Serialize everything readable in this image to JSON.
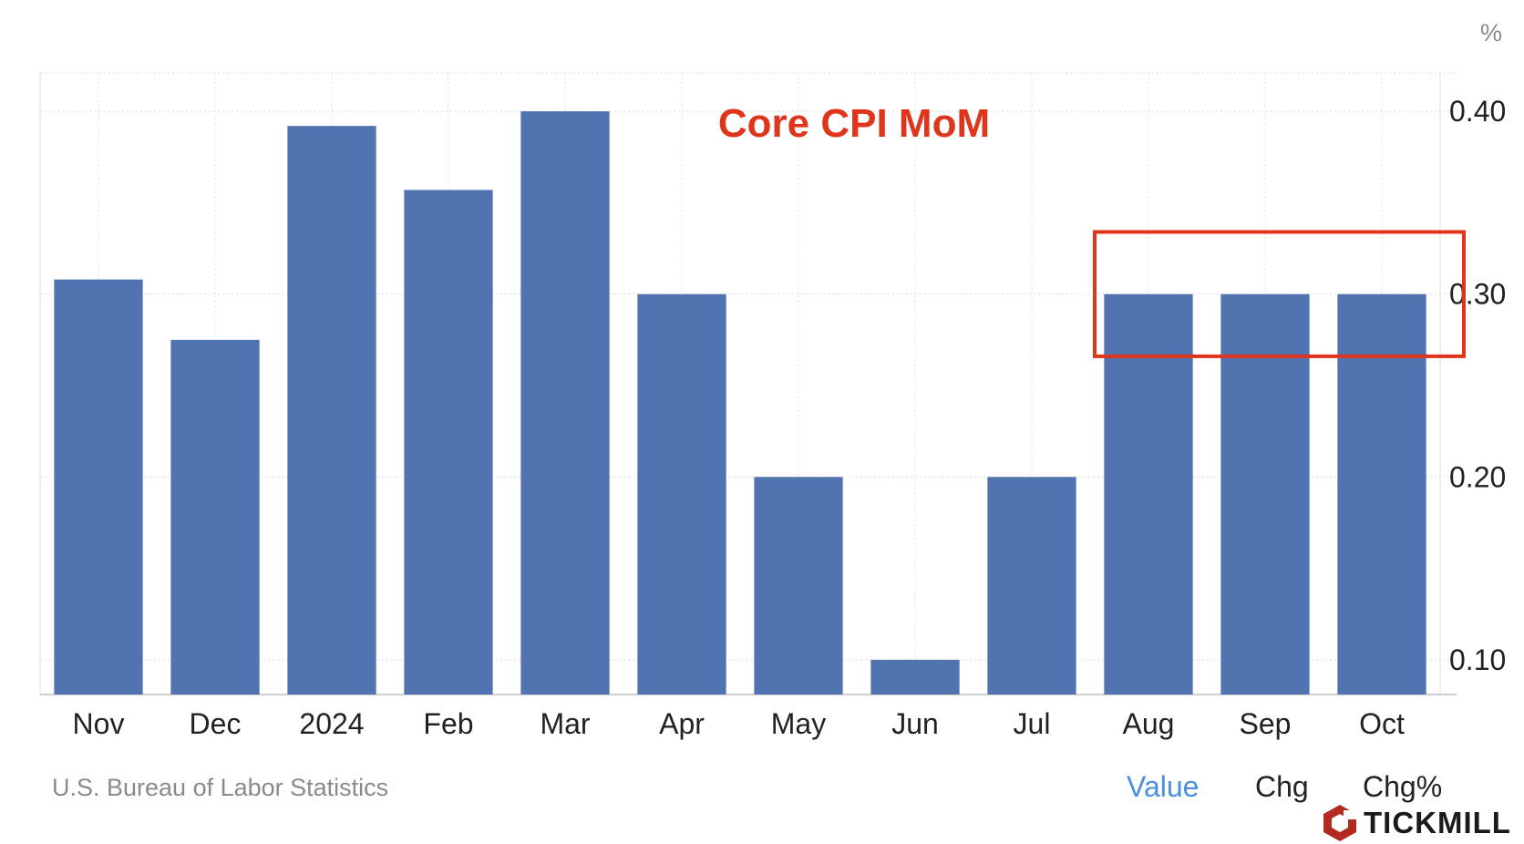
{
  "chart_data": {
    "type": "bar",
    "title": "Core CPI MoM",
    "unit": "%",
    "categories": [
      "Nov",
      "Dec",
      "2024",
      "Feb",
      "Mar",
      "Apr",
      "May",
      "Jun",
      "Jul",
      "Aug",
      "Sep",
      "Oct"
    ],
    "values": [
      0.308,
      0.275,
      0.392,
      0.357,
      0.4,
      0.3,
      0.2,
      0.1,
      0.2,
      0.3,
      0.3,
      0.3
    ],
    "ylim": [
      0.081,
      0.421
    ],
    "yticks": [
      "0.10",
      "0.20",
      "0.30",
      "0.40"
    ],
    "ytick_values": [
      0.1,
      0.2,
      0.3,
      0.4
    ],
    "yaxis_position": "right",
    "grid": true,
    "highlight": {
      "from_category": "Aug",
      "to_category": "Oct",
      "color": "#e0351d"
    },
    "bar_color": "#5173b0",
    "title_color": "#e0351d"
  },
  "footer": {
    "source": "U.S. Bureau of Labor Statistics",
    "toggles": [
      "Value",
      "Chg",
      "Chg%"
    ],
    "active_toggle": "Value"
  },
  "brand": {
    "name": "TICKMILL",
    "logo_color": "#b32a20"
  }
}
